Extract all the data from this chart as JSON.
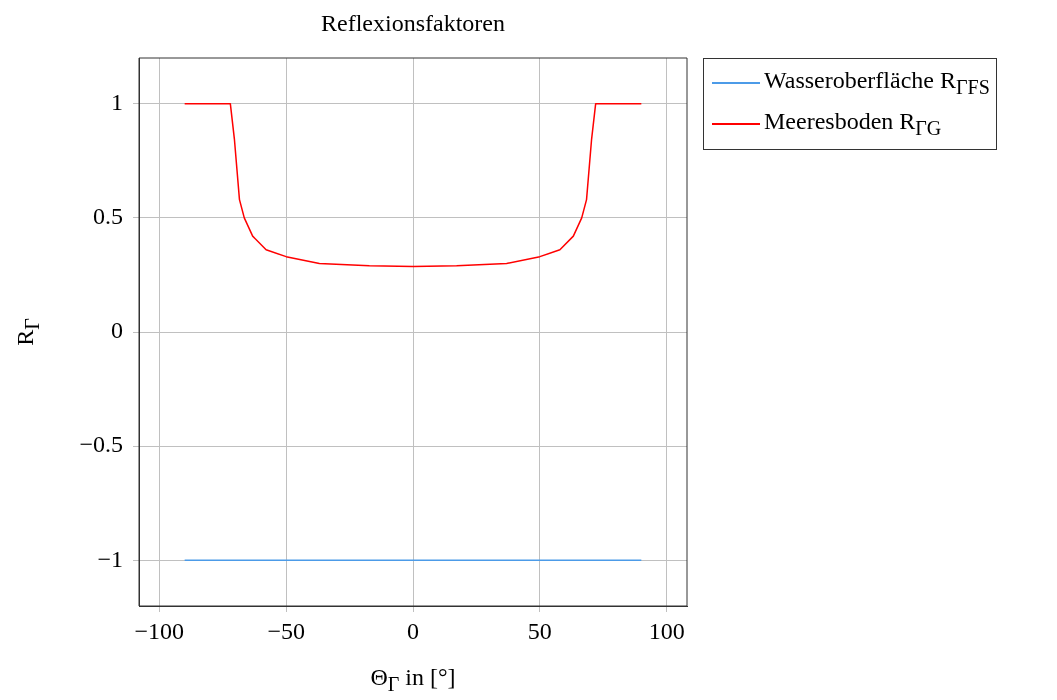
{
  "chart_data": {
    "type": "line",
    "title": "Reflexionsfaktoren",
    "xlabel": "Θ$_{Γ}$ in [°]",
    "ylabel": "R$_{Γ}$",
    "xlim": [
      -108,
      108
    ],
    "ylim": [
      -1.2,
      1.2
    ],
    "xticks": [
      {
        "value": -100,
        "label": "−100"
      },
      {
        "value": -50,
        "label": "−50"
      },
      0,
      50,
      100
    ],
    "yticks": [
      {
        "value": -1,
        "label": "−1"
      },
      {
        "value": -0.5,
        "label": "−0.5"
      },
      0,
      0.5,
      1
    ],
    "grid": true,
    "legend": "top right",
    "marker": "none",
    "line_style": "solid",
    "series": [
      {
        "name": "Wasseroberfläche R$_{ΓFS}$",
        "color": "#4c9be8",
        "x": [
          -90,
          90
        ],
        "values": [
          -1,
          -1
        ]
      },
      {
        "name": "Meeresboden R$_{ΓG}$",
        "color": "#ff0000",
        "x": [
          -90,
          -72,
          -70.4,
          -68.4,
          -66.5,
          -63.2,
          -57.9,
          -50,
          -36.9,
          -17.2,
          0,
          17.2,
          36.9,
          50,
          57.9,
          63.2,
          66.5,
          68.4,
          70.4,
          72,
          90
        ],
        "values": [
          1,
          1,
          0.845,
          0.58,
          0.5,
          0.42,
          0.36,
          0.33,
          0.3,
          0.29,
          0.287,
          0.29,
          0.3,
          0.33,
          0.36,
          0.42,
          0.5,
          0.58,
          0.845,
          1,
          1
        ]
      }
    ]
  }
}
